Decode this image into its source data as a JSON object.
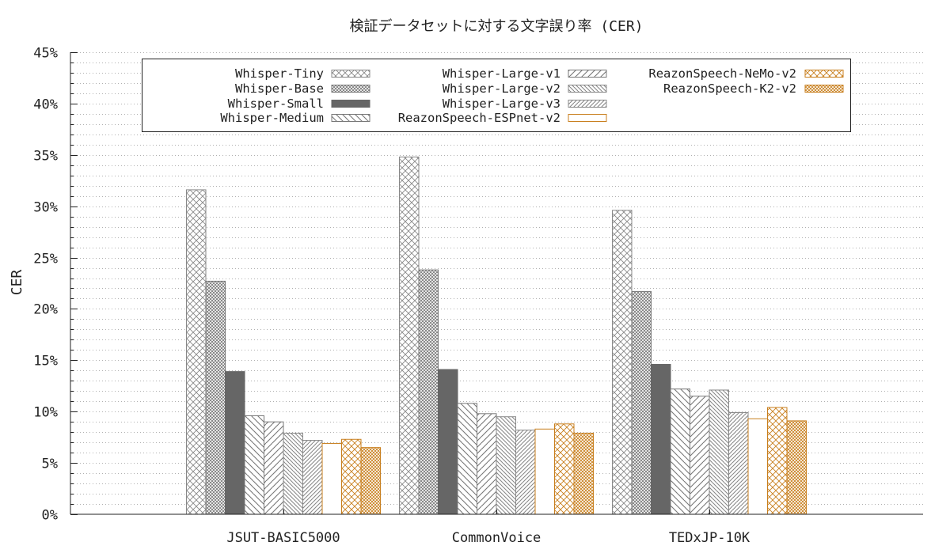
{
  "chart_data": {
    "type": "bar",
    "title": "検証データセットに対する文字誤り率 (CER)",
    "ylabel": "CER",
    "xlabel": "",
    "ylim": [
      0,
      45
    ],
    "y_ticks": [
      "0%",
      "5%",
      "10%",
      "15%",
      "20%",
      "25%",
      "30%",
      "35%",
      "40%",
      "45%"
    ],
    "y_tick_values": [
      0,
      5,
      10,
      15,
      20,
      25,
      30,
      35,
      40,
      45
    ],
    "y_minor_step": 1,
    "grid": true,
    "legend_position": "top",
    "categories": [
      "JSUT-BASIC5000",
      "CommonVoice",
      "TEDxJP-10K"
    ],
    "series": [
      {
        "name": "Whisper-Tiny",
        "values": [
          31.6,
          34.8,
          29.6
        ],
        "color": "#888888",
        "pattern": "crosshatch-coarse"
      },
      {
        "name": "Whisper-Base",
        "values": [
          22.7,
          23.8,
          21.7
        ],
        "color": "#777777",
        "pattern": "crosshatch-fine"
      },
      {
        "name": "Whisper-Small",
        "values": [
          13.9,
          14.1,
          14.6
        ],
        "color": "#666666",
        "pattern": "solid"
      },
      {
        "name": "Whisper-Medium",
        "values": [
          9.6,
          10.8,
          12.2
        ],
        "color": "#777777",
        "pattern": "diag-back"
      },
      {
        "name": "Whisper-Large-v1",
        "values": [
          9.0,
          9.8,
          11.5
        ],
        "color": "#777777",
        "pattern": "diag-fwd"
      },
      {
        "name": "Whisper-Large-v2",
        "values": [
          7.9,
          9.5,
          12.1
        ],
        "color": "#888888",
        "pattern": "diag-back-fine"
      },
      {
        "name": "Whisper-Large-v3",
        "values": [
          7.2,
          8.2,
          9.9
        ],
        "color": "#888888",
        "pattern": "diag-fwd-fine"
      },
      {
        "name": "ReazonSpeech-ESPnet-v2",
        "values": [
          6.9,
          8.3,
          9.3
        ],
        "color": "#c87f1e",
        "pattern": "empty"
      },
      {
        "name": "ReazonSpeech-NeMo-v2",
        "values": [
          7.3,
          8.8,
          10.4
        ],
        "color": "#c87f1e",
        "pattern": "crosshatch-coarse"
      },
      {
        "name": "ReazonSpeech-K2-v2",
        "values": [
          6.5,
          7.9,
          9.1
        ],
        "color": "#c87f1e",
        "pattern": "crosshatch-fine"
      }
    ]
  }
}
